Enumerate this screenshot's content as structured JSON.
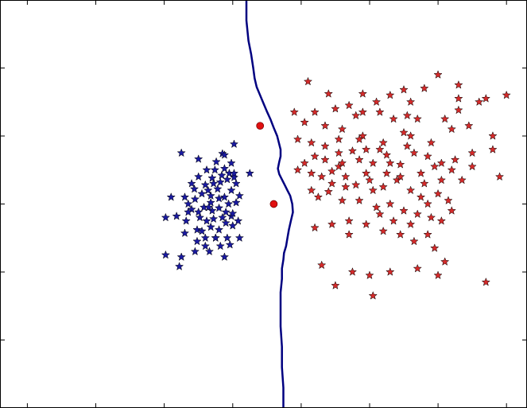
{
  "chart_data": {
    "type": "scatter",
    "title": "",
    "xlabel": "",
    "ylabel": "",
    "xlim": [
      -4,
      3.7
    ],
    "ylim": [
      -3,
      3
    ],
    "grid": false,
    "legend": "none",
    "tick_labels_visible": false,
    "x_ticks": [
      -3.6,
      -2.6,
      -1.6,
      -0.6,
      0.4,
      1.4,
      2.4,
      3.4
    ],
    "y_ticks": [
      -2.0,
      -1.0,
      0.0,
      1.0,
      2.0
    ],
    "colors": {
      "blue": "#1a1aa0",
      "red": "#d42a2a",
      "boundary": "#000080",
      "axis": "#000000"
    },
    "series": [
      {
        "marker": "star",
        "color": "#1a1aa0",
        "points": [
          [
            -1.35,
            0.75
          ],
          [
            -1.1,
            0.66
          ],
          [
            -0.75,
            0.74
          ],
          [
            -0.58,
            0.88
          ],
          [
            -0.58,
            0.39
          ],
          [
            -0.35,
            0.45
          ],
          [
            -1.15,
            0.07
          ],
          [
            -1.3,
            0.1
          ],
          [
            -1.42,
            -0.18
          ],
          [
            -1.28,
            -0.25
          ],
          [
            -1.3,
            -0.43
          ],
          [
            -1.12,
            -0.38
          ],
          [
            -0.85,
            -0.5
          ],
          [
            -1.0,
            -0.62
          ],
          [
            -1.15,
            -0.7
          ],
          [
            -1.35,
            -0.78
          ],
          [
            -0.72,
            -0.78
          ],
          [
            -0.68,
            -0.5
          ],
          [
            -0.5,
            -0.5
          ],
          [
            -0.62,
            -0.18
          ],
          [
            -0.55,
            0.02
          ],
          [
            -0.62,
            0.2
          ],
          [
            -0.72,
            0.1
          ],
          [
            -0.82,
            0.22
          ],
          [
            -0.92,
            0.12
          ],
          [
            -1.0,
            0.28
          ],
          [
            -0.9,
            0.38
          ],
          [
            -0.78,
            0.32
          ],
          [
            -0.68,
            0.36
          ],
          [
            -0.86,
            0.5
          ],
          [
            -0.98,
            0.5
          ],
          [
            -0.72,
            0.52
          ],
          [
            -0.62,
            0.6
          ],
          [
            -0.8,
            0.08
          ],
          [
            -0.92,
            0.02
          ],
          [
            -1.02,
            -0.05
          ],
          [
            -0.9,
            -0.1
          ],
          [
            -0.8,
            -0.06
          ],
          [
            -0.7,
            -0.12
          ],
          [
            -0.6,
            -0.14
          ],
          [
            -0.75,
            -0.2
          ],
          [
            -0.88,
            -0.22
          ],
          [
            -0.98,
            -0.25
          ],
          [
            -1.08,
            -0.2
          ],
          [
            -1.05,
            -0.4
          ],
          [
            -0.92,
            -0.34
          ],
          [
            -0.8,
            -0.38
          ],
          [
            -0.7,
            -0.28
          ],
          [
            -0.6,
            -0.32
          ],
          [
            -0.66,
            0.0
          ],
          [
            -0.85,
            -0.5
          ],
          [
            -0.78,
            -0.62
          ],
          [
            -0.64,
            -0.6
          ],
          [
            -0.96,
            0.2
          ],
          [
            -1.05,
            0.15
          ],
          [
            -1.16,
            0.22
          ],
          [
            -1.2,
            0.3
          ],
          [
            -1.1,
            0.4
          ],
          [
            -0.72,
            0.72
          ],
          [
            -0.65,
            0.45
          ],
          [
            -0.55,
            0.3
          ],
          [
            -0.5,
            0.12
          ],
          [
            -0.52,
            -0.25
          ],
          [
            -1.2,
            -0.08
          ],
          [
            -1.1,
            -0.12
          ],
          [
            -1.25,
            -0.12
          ],
          [
            -0.84,
            0.62
          ],
          [
            -0.76,
            0.42
          ],
          [
            -0.88,
            0.3
          ],
          [
            -1.0,
            -0.5
          ],
          [
            -1.12,
            -0.55
          ],
          [
            -0.58,
            0.45
          ],
          [
            -1.58,
            -0.75
          ],
          [
            -1.38,
            -0.92
          ],
          [
            -1.5,
            0.1
          ],
          [
            -1.58,
            -0.2
          ],
          [
            -0.94,
            -0.7
          ],
          [
            -1.25,
            0.0
          ],
          [
            -0.95,
            -0.05
          ]
        ]
      },
      {
        "marker": "star",
        "color": "#d42a2a",
        "points": [
          [
            0.5,
            1.8
          ],
          [
            0.8,
            1.62
          ],
          [
            1.3,
            1.62
          ],
          [
            1.9,
            1.68
          ],
          [
            1.7,
            1.6
          ],
          [
            2.4,
            1.9
          ],
          [
            2.7,
            1.75
          ],
          [
            3.0,
            1.5
          ],
          [
            2.2,
            1.7
          ],
          [
            1.1,
            1.45
          ],
          [
            0.9,
            1.4
          ],
          [
            1.2,
            1.3
          ],
          [
            1.5,
            1.5
          ],
          [
            2.0,
            1.5
          ],
          [
            2.5,
            1.25
          ],
          [
            2.7,
            1.38
          ],
          [
            0.45,
            1.2
          ],
          [
            0.75,
            1.15
          ],
          [
            1.0,
            1.1
          ],
          [
            1.3,
            1.0
          ],
          [
            1.6,
            0.9
          ],
          [
            2.0,
            1.0
          ],
          [
            2.3,
            0.9
          ],
          [
            2.6,
            1.1
          ],
          [
            2.9,
            0.75
          ],
          [
            3.2,
            0.8
          ],
          [
            0.35,
            0.95
          ],
          [
            0.55,
            0.9
          ],
          [
            0.6,
            0.7
          ],
          [
            0.75,
            0.65
          ],
          [
            0.95,
            0.75
          ],
          [
            1.15,
            0.78
          ],
          [
            1.25,
            0.65
          ],
          [
            1.45,
            0.6
          ],
          [
            1.65,
            0.72
          ],
          [
            1.85,
            0.58
          ],
          [
            2.05,
            0.75
          ],
          [
            2.25,
            0.7
          ],
          [
            2.45,
            0.6
          ],
          [
            2.6,
            0.5
          ],
          [
            2.75,
            0.35
          ],
          [
            2.9,
            0.55
          ],
          [
            0.55,
            0.45
          ],
          [
            0.7,
            0.4
          ],
          [
            0.85,
            0.48
          ],
          [
            1.05,
            0.4
          ],
          [
            1.2,
            0.28
          ],
          [
            1.4,
            0.35
          ],
          [
            1.6,
            0.25
          ],
          [
            1.8,
            0.35
          ],
          [
            2.0,
            0.2
          ],
          [
            2.2,
            0.3
          ],
          [
            2.4,
            0.15
          ],
          [
            2.55,
            0.05
          ],
          [
            0.55,
            0.2
          ],
          [
            0.8,
            0.18
          ],
          [
            1.0,
            0.05
          ],
          [
            1.25,
            0.05
          ],
          [
            1.5,
            -0.05
          ],
          [
            1.7,
            0.0
          ],
          [
            1.9,
            -0.1
          ],
          [
            2.1,
            -0.15
          ],
          [
            2.3,
            -0.2
          ],
          [
            2.45,
            -0.25
          ],
          [
            0.6,
            -0.35
          ],
          [
            0.85,
            -0.3
          ],
          [
            1.1,
            -0.25
          ],
          [
            1.35,
            -0.3
          ],
          [
            1.6,
            -0.4
          ],
          [
            1.85,
            -0.45
          ],
          [
            2.05,
            -0.55
          ],
          [
            2.35,
            -0.65
          ],
          [
            2.5,
            -0.85
          ],
          [
            0.7,
            -0.9
          ],
          [
            1.15,
            -1.0
          ],
          [
            1.4,
            -1.05
          ],
          [
            1.7,
            -1.0
          ],
          [
            2.1,
            -0.95
          ],
          [
            2.4,
            -1.05
          ],
          [
            0.9,
            -1.2
          ],
          [
            1.45,
            -1.35
          ],
          [
            3.1,
            -1.15
          ],
          [
            1.3,
            1.35
          ],
          [
            1.55,
            1.35
          ],
          [
            1.75,
            1.25
          ],
          [
            1.95,
            1.3
          ],
          [
            1.45,
            0.2
          ],
          [
            1.65,
            0.45
          ],
          [
            2.15,
            0.45
          ],
          [
            0.95,
            0.55
          ],
          [
            1.35,
            0.45
          ],
          [
            0.65,
            0.1
          ],
          [
            1.75,
            -0.25
          ],
          [
            2.25,
            0.0
          ],
          [
            2.6,
            -0.1
          ],
          [
            3.2,
            1.0
          ],
          [
            0.3,
            1.35
          ],
          [
            0.6,
            1.35
          ],
          [
            1.05,
            0.25
          ],
          [
            2.7,
            1.55
          ],
          [
            1.95,
            0.85
          ],
          [
            1.55,
            0.8
          ],
          [
            1.35,
            0.8
          ],
          [
            2.25,
            -0.45
          ],
          [
            0.45,
            0.6
          ],
          [
            1.9,
            1.05
          ],
          [
            0.95,
            0.95
          ],
          [
            2.0,
            -0.3
          ],
          [
            1.25,
            0.95
          ],
          [
            2.35,
            0.55
          ],
          [
            1.1,
            -0.45
          ],
          [
            2.65,
            0.65
          ],
          [
            3.4,
            1.6
          ],
          [
            3.1,
            1.55
          ],
          [
            1.85,
            0.4
          ],
          [
            1.0,
            0.6
          ],
          [
            0.75,
            0.85
          ],
          [
            2.15,
            0.1
          ],
          [
            1.55,
            -0.15
          ],
          [
            0.35,
            0.5
          ],
          [
            1.7,
            0.6
          ],
          [
            2.45,
            0.35
          ],
          [
            2.1,
            1.25
          ],
          [
            0.85,
            0.3
          ],
          [
            3.3,
            0.4
          ],
          [
            2.85,
            1.15
          ]
        ]
      },
      {
        "marker": "circle",
        "color": "#e01010",
        "points": [
          [
            -0.2,
            1.15
          ],
          [
            0.0,
            0.0
          ]
        ]
      }
    ],
    "decision_boundary": [
      [
        -0.4,
        3.0
      ],
      [
        -0.4,
        2.7
      ],
      [
        -0.37,
        2.4
      ],
      [
        -0.33,
        2.2
      ],
      [
        -0.3,
        2.0
      ],
      [
        -0.28,
        1.85
      ],
      [
        -0.25,
        1.72
      ],
      [
        -0.2,
        1.6
      ],
      [
        -0.15,
        1.48
      ],
      [
        -0.1,
        1.36
      ],
      [
        -0.05,
        1.25
      ],
      [
        0.0,
        1.12
      ],
      [
        0.05,
        1.0
      ],
      [
        0.08,
        0.88
      ],
      [
        0.1,
        0.8
      ],
      [
        0.1,
        0.7
      ],
      [
        0.08,
        0.62
      ],
      [
        0.06,
        0.52
      ],
      [
        0.08,
        0.44
      ],
      [
        0.12,
        0.36
      ],
      [
        0.16,
        0.28
      ],
      [
        0.2,
        0.2
      ],
      [
        0.24,
        0.12
      ],
      [
        0.27,
        0.0
      ],
      [
        0.28,
        -0.12
      ],
      [
        0.25,
        -0.25
      ],
      [
        0.22,
        -0.38
      ],
      [
        0.2,
        -0.5
      ],
      [
        0.18,
        -0.62
      ],
      [
        0.15,
        -0.72
      ],
      [
        0.14,
        -0.82
      ],
      [
        0.12,
        -0.95
      ],
      [
        0.12,
        -1.1
      ],
      [
        0.1,
        -1.3
      ],
      [
        0.1,
        -1.5
      ],
      [
        0.1,
        -1.8
      ],
      [
        0.12,
        -2.1
      ],
      [
        0.12,
        -2.4
      ],
      [
        0.14,
        -2.7
      ],
      [
        0.14,
        -3.0
      ]
    ]
  }
}
